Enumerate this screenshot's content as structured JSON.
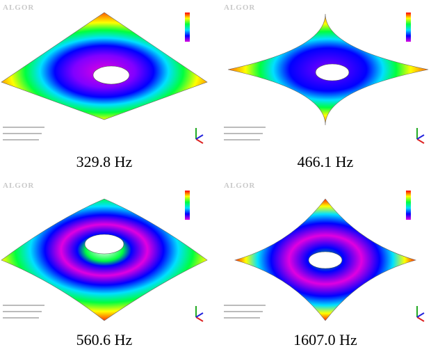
{
  "panels": [
    {
      "logo": "ALGOR",
      "caption": "329.8 Hz"
    },
    {
      "logo": "ALGOR",
      "caption": "466.1 Hz"
    },
    {
      "logo": "ALGOR",
      "caption": "560.6 Hz"
    },
    {
      "logo": "ALGOR",
      "caption": "1607.0 Hz"
    }
  ]
}
